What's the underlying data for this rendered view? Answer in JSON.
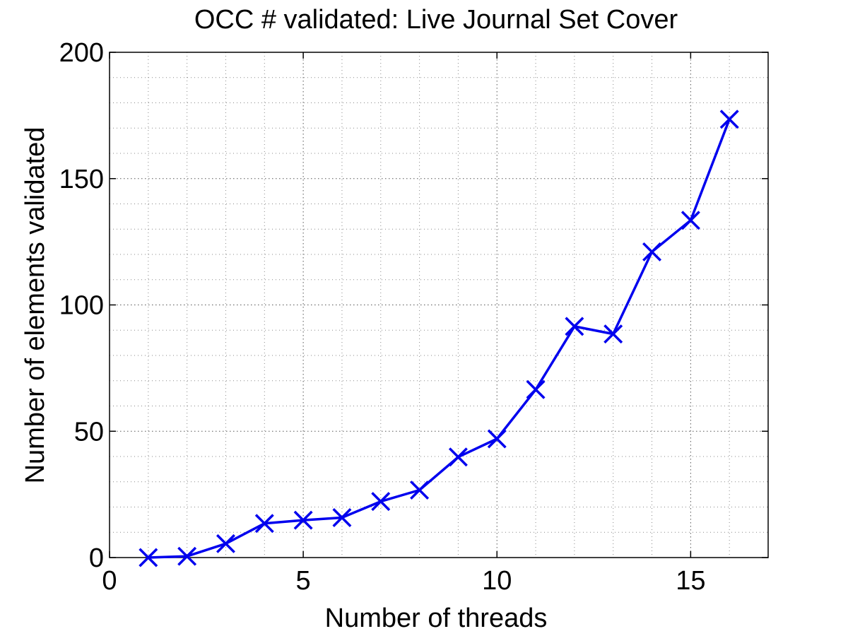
{
  "chart_data": {
    "type": "line",
    "title": "OCC # validated: Live Journal Set Cover",
    "xlabel": "Number of threads",
    "ylabel": "Number of elements validated",
    "xlim": [
      0,
      17
    ],
    "ylim": [
      0,
      200
    ],
    "xticks": [
      0,
      5,
      10,
      15
    ],
    "yticks": [
      0,
      50,
      100,
      150,
      200
    ],
    "grid": true,
    "minor_grid": true,
    "series": [
      {
        "color": "#0000ee",
        "marker": "x",
        "x": [
          1,
          2,
          3,
          4,
          5,
          6,
          7,
          8,
          9,
          10,
          11,
          12,
          13,
          14,
          15,
          16
        ],
        "y": [
          0,
          0.5,
          5.5,
          13.5,
          14.8,
          15.8,
          22.2,
          26.7,
          39.8,
          47,
          66.5,
          91.5,
          88.5,
          121,
          133.5,
          173.5
        ]
      }
    ]
  }
}
